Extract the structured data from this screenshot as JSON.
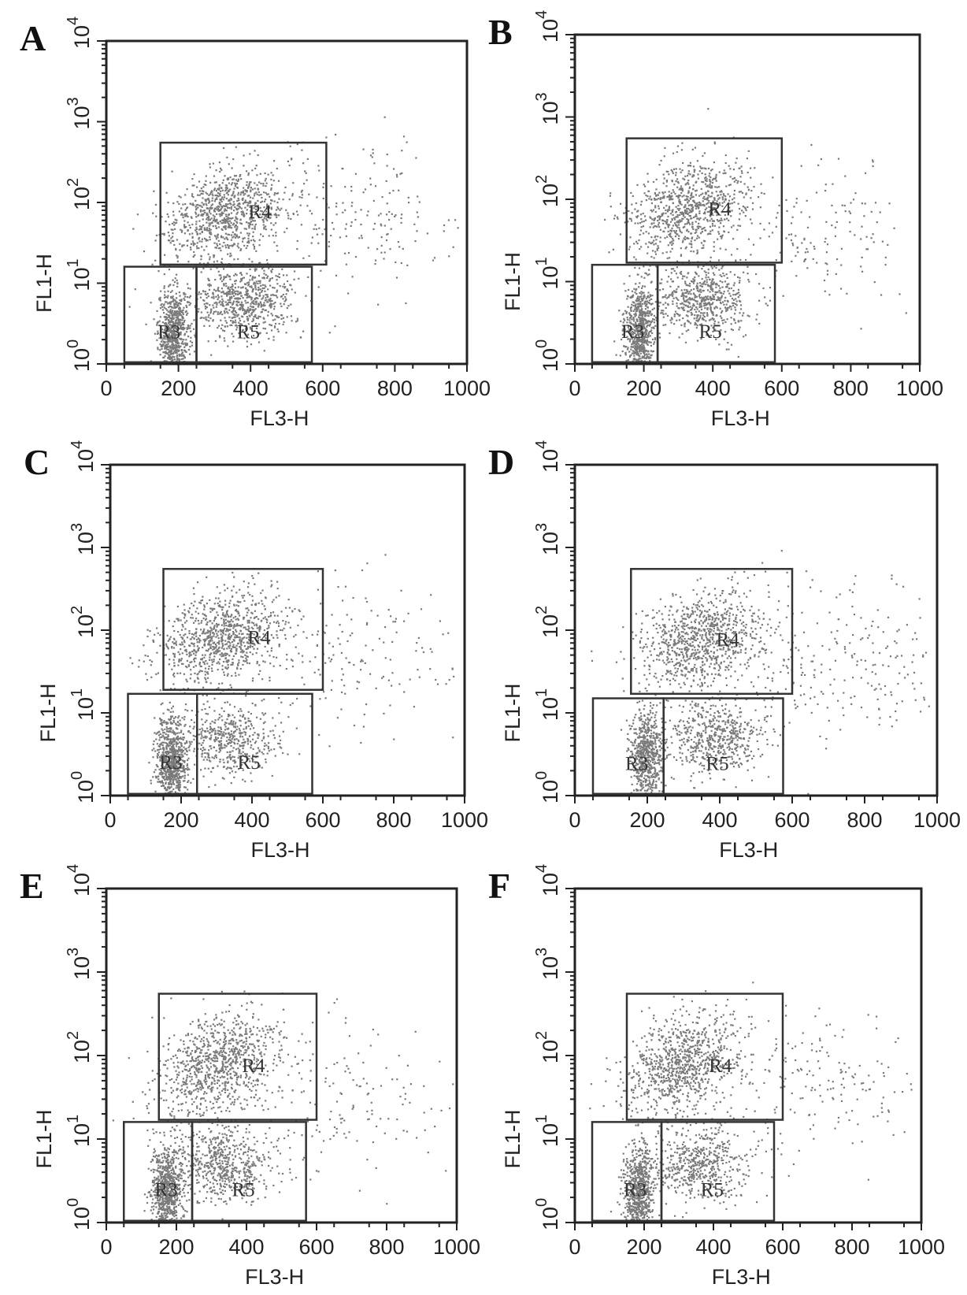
{
  "chart_data": [
    {
      "type": "scatter",
      "panel": "A",
      "xlabel": "FL3-H",
      "ylabel": "FL1-H",
      "xlim": [
        0,
        1000
      ],
      "ylim": [
        1,
        10000
      ],
      "y_scale": "log",
      "x_ticks": [
        "0",
        "200",
        "400",
        "600",
        "800",
        "1000"
      ],
      "y_ticks": [
        {
          "base": "10",
          "exp": "0"
        },
        {
          "base": "10",
          "exp": "1"
        },
        {
          "base": "10",
          "exp": "2"
        },
        {
          "base": "10",
          "exp": "3"
        },
        {
          "base": "10",
          "exp": "4"
        }
      ],
      "gates": [
        {
          "name": "R4",
          "x": [
            150,
            610
          ],
          "y": [
            17,
            550
          ]
        },
        {
          "name": "R3",
          "x": [
            50,
            250
          ],
          "y": [
            1.05,
            16
          ]
        },
        {
          "name": "R5",
          "x": [
            250,
            570
          ],
          "y": [
            1.05,
            16
          ]
        }
      ],
      "populations": [
        {
          "region": "R3",
          "cx": 185,
          "cy": 2.5,
          "count": 700
        },
        {
          "region": "R5",
          "cx": 380,
          "cy": 6,
          "count": 700
        },
        {
          "region": "R4",
          "cx": 330,
          "cy": 75,
          "count": 900
        },
        {
          "region": "scatter",
          "cx": 650,
          "cy": 60,
          "count": 220
        }
      ]
    },
    {
      "type": "scatter",
      "panel": "B",
      "xlabel": "FL3-H",
      "ylabel": "FL1-H",
      "xlim": [
        0,
        1000
      ],
      "ylim": [
        1,
        10000
      ],
      "y_scale": "log",
      "x_ticks": [
        "0",
        "200",
        "400",
        "600",
        "800",
        "1000"
      ],
      "y_ticks": [
        {
          "base": "10",
          "exp": "0"
        },
        {
          "base": "10",
          "exp": "1"
        },
        {
          "base": "10",
          "exp": "2"
        },
        {
          "base": "10",
          "exp": "3"
        },
        {
          "base": "10",
          "exp": "4"
        }
      ],
      "gates": [
        {
          "name": "R4",
          "x": [
            150,
            600
          ],
          "y": [
            17,
            550
          ]
        },
        {
          "name": "R3",
          "x": [
            50,
            240
          ],
          "y": [
            1.05,
            16
          ]
        },
        {
          "name": "R5",
          "x": [
            240,
            580
          ],
          "y": [
            1.05,
            16
          ]
        }
      ],
      "populations": [
        {
          "region": "R3",
          "cx": 185,
          "cy": 2.5,
          "count": 700
        },
        {
          "region": "R5",
          "cx": 370,
          "cy": 6,
          "count": 600
        },
        {
          "region": "R4",
          "cx": 320,
          "cy": 80,
          "count": 850
        },
        {
          "region": "scatter",
          "cx": 700,
          "cy": 40,
          "count": 180
        }
      ]
    },
    {
      "type": "scatter",
      "panel": "C",
      "xlabel": "FL3-H",
      "ylabel": "FL1-H",
      "xlim": [
        0,
        1000
      ],
      "ylim": [
        1,
        10000
      ],
      "y_scale": "log",
      "x_ticks": [
        "0",
        "200",
        "400",
        "600",
        "800",
        "1000"
      ],
      "y_ticks": [
        {
          "base": "10",
          "exp": "0"
        },
        {
          "base": "10",
          "exp": "1"
        },
        {
          "base": "10",
          "exp": "2"
        },
        {
          "base": "10",
          "exp": "3"
        },
        {
          "base": "10",
          "exp": "4"
        }
      ],
      "gates": [
        {
          "name": "R4",
          "x": [
            150,
            600
          ],
          "y": [
            19,
            550
          ]
        },
        {
          "name": "R3",
          "x": [
            50,
            245
          ],
          "y": [
            1.05,
            17
          ]
        },
        {
          "name": "R5",
          "x": [
            245,
            570
          ],
          "y": [
            1.05,
            17
          ]
        }
      ],
      "populations": [
        {
          "region": "R3",
          "cx": 170,
          "cy": 2.5,
          "count": 750
        },
        {
          "region": "R5",
          "cx": 330,
          "cy": 5,
          "count": 500
        },
        {
          "region": "R4",
          "cx": 310,
          "cy": 80,
          "count": 900
        },
        {
          "region": "scatter",
          "cx": 650,
          "cy": 50,
          "count": 200
        }
      ]
    },
    {
      "type": "scatter",
      "panel": "D",
      "xlabel": "FL3-H",
      "ylabel": "FL1-H",
      "xlim": [
        0,
        1000
      ],
      "ylim": [
        1,
        10000
      ],
      "y_scale": "log",
      "x_ticks": [
        "0",
        "200",
        "400",
        "600",
        "800",
        "1000"
      ],
      "y_ticks": [
        {
          "base": "10",
          "exp": "0"
        },
        {
          "base": "10",
          "exp": "1"
        },
        {
          "base": "10",
          "exp": "2"
        },
        {
          "base": "10",
          "exp": "3"
        },
        {
          "base": "10",
          "exp": "4"
        }
      ],
      "gates": [
        {
          "name": "R4",
          "x": [
            155,
            600
          ],
          "y": [
            17,
            550
          ]
        },
        {
          "name": "R3",
          "x": [
            50,
            245
          ],
          "y": [
            1.05,
            15
          ]
        },
        {
          "name": "R5",
          "x": [
            245,
            575
          ],
          "y": [
            1.05,
            15
          ]
        }
      ],
      "populations": [
        {
          "region": "R3",
          "cx": 195,
          "cy": 3,
          "count": 650
        },
        {
          "region": "R5",
          "cx": 380,
          "cy": 5,
          "count": 550
        },
        {
          "region": "R4",
          "cx": 350,
          "cy": 80,
          "count": 900
        },
        {
          "region": "scatter",
          "cx": 720,
          "cy": 40,
          "count": 280
        }
      ]
    },
    {
      "type": "scatter",
      "panel": "E",
      "xlabel": "FL3-H",
      "ylabel": "FL1-H",
      "xlim": [
        0,
        1000
      ],
      "ylim": [
        1,
        10000
      ],
      "y_scale": "log",
      "x_ticks": [
        "0",
        "200",
        "400",
        "600",
        "800",
        "1000"
      ],
      "y_ticks": [
        {
          "base": "10",
          "exp": "0"
        },
        {
          "base": "10",
          "exp": "1"
        },
        {
          "base": "10",
          "exp": "2"
        },
        {
          "base": "10",
          "exp": "3"
        },
        {
          "base": "10",
          "exp": "4"
        }
      ],
      "gates": [
        {
          "name": "R4",
          "x": [
            150,
            600
          ],
          "y": [
            17,
            550
          ]
        },
        {
          "name": "R3",
          "x": [
            50,
            245
          ],
          "y": [
            1.05,
            16
          ]
        },
        {
          "name": "R5",
          "x": [
            245,
            570
          ],
          "y": [
            1.05,
            16
          ]
        }
      ],
      "populations": [
        {
          "region": "R3",
          "cx": 170,
          "cy": 2.5,
          "count": 750
        },
        {
          "region": "R5",
          "cx": 330,
          "cy": 5,
          "count": 600
        },
        {
          "region": "R4",
          "cx": 320,
          "cy": 80,
          "count": 900
        },
        {
          "region": "scatter",
          "cx": 640,
          "cy": 30,
          "count": 180
        }
      ]
    },
    {
      "type": "scatter",
      "panel": "F",
      "xlabel": "FL3-H",
      "ylabel": "FL1-H",
      "xlim": [
        0,
        1000
      ],
      "ylim": [
        1,
        10000
      ],
      "y_scale": "log",
      "x_ticks": [
        "0",
        "200",
        "400",
        "600",
        "800",
        "1000"
      ],
      "y_ticks": [
        {
          "base": "10",
          "exp": "0"
        },
        {
          "base": "10",
          "exp": "1"
        },
        {
          "base": "10",
          "exp": "2"
        },
        {
          "base": "10",
          "exp": "3"
        },
        {
          "base": "10",
          "exp": "4"
        }
      ],
      "gates": [
        {
          "name": "R4",
          "x": [
            150,
            600
          ],
          "y": [
            17,
            550
          ]
        },
        {
          "name": "R3",
          "x": [
            50,
            250
          ],
          "y": [
            1.05,
            16
          ]
        },
        {
          "name": "R5",
          "x": [
            250,
            575
          ],
          "y": [
            1.05,
            16
          ]
        }
      ],
      "populations": [
        {
          "region": "R3",
          "cx": 180,
          "cy": 2.5,
          "count": 700
        },
        {
          "region": "R5",
          "cx": 360,
          "cy": 5,
          "count": 550
        },
        {
          "region": "R4",
          "cx": 310,
          "cy": 80,
          "count": 900
        },
        {
          "region": "scatter",
          "cx": 700,
          "cy": 50,
          "count": 200
        }
      ]
    }
  ],
  "colors": {
    "dots": "#7a7a7a",
    "frame": "#222222"
  }
}
